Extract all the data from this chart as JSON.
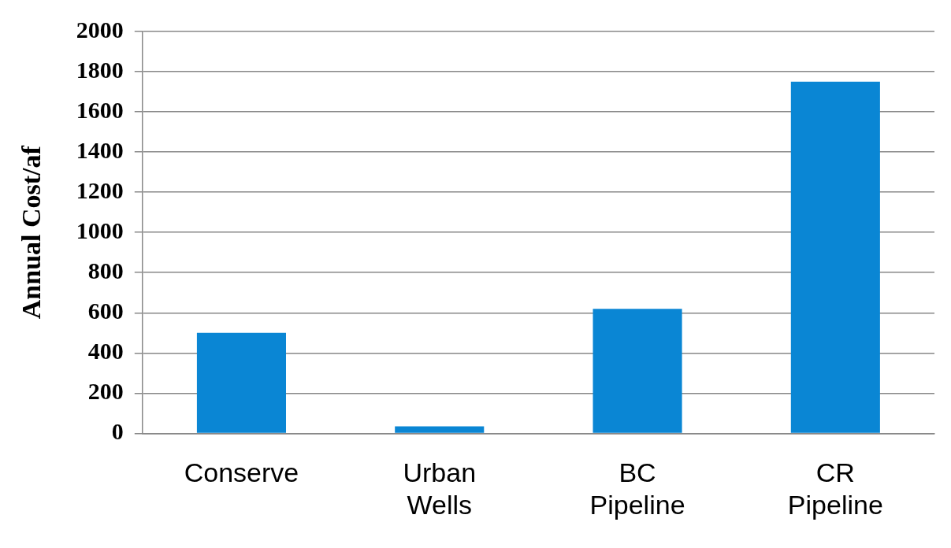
{
  "chart_data": {
    "type": "bar",
    "ylabel": "Annual Cost/af",
    "categories": [
      "Conserve",
      "Urban Wells",
      "BC Pipeline",
      "CR Pipeline"
    ],
    "values": [
      500,
      35,
      620,
      1750
    ],
    "color": "#0a86d4",
    "ylim": [
      0,
      2000
    ],
    "yticks": [
      0,
      200,
      400,
      600,
      800,
      1000,
      1200,
      1400,
      1600,
      1800,
      2000
    ],
    "grid": "y",
    "legend": false
  }
}
